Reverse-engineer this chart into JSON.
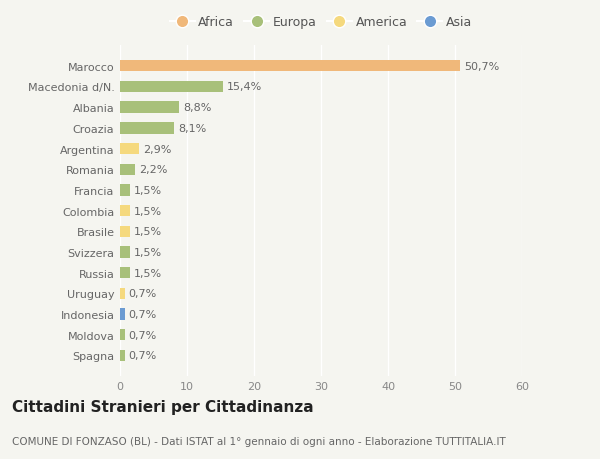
{
  "categories": [
    "Spagna",
    "Moldova",
    "Indonesia",
    "Uruguay",
    "Russia",
    "Svizzera",
    "Brasile",
    "Colombia",
    "Francia",
    "Romania",
    "Argentina",
    "Croazia",
    "Albania",
    "Macedonia d/N.",
    "Marocco"
  ],
  "values": [
    0.7,
    0.7,
    0.7,
    0.7,
    1.5,
    1.5,
    1.5,
    1.5,
    1.5,
    2.2,
    2.9,
    8.1,
    8.8,
    15.4,
    50.7
  ],
  "labels": [
    "0,7%",
    "0,7%",
    "0,7%",
    "0,7%",
    "1,5%",
    "1,5%",
    "1,5%",
    "1,5%",
    "1,5%",
    "2,2%",
    "2,9%",
    "8,1%",
    "8,8%",
    "15,4%",
    "50,7%"
  ],
  "colors": [
    "#a8c07a",
    "#a8c07a",
    "#6b9bd2",
    "#f5d97e",
    "#a8c07a",
    "#a8c07a",
    "#f5d97e",
    "#f5d97e",
    "#a8c07a",
    "#a8c07a",
    "#f5d97e",
    "#a8c07a",
    "#a8c07a",
    "#a8c07a",
    "#f0b87a"
  ],
  "legend_labels": [
    "Africa",
    "Europa",
    "America",
    "Asia"
  ],
  "legend_colors": [
    "#f0b87a",
    "#a8c07a",
    "#f5d97e",
    "#6b9bd2"
  ],
  "title": "Cittadini Stranieri per Cittadinanza",
  "subtitle": "COMUNE DI FONZASO (BL) - Dati ISTAT al 1° gennaio di ogni anno - Elaborazione TUTTITALIA.IT",
  "xlim": [
    0,
    60
  ],
  "xticks": [
    0,
    10,
    20,
    30,
    40,
    50,
    60
  ],
  "background_color": "#f5f5f0",
  "bar_height": 0.55,
  "title_fontsize": 11,
  "subtitle_fontsize": 7.5,
  "tick_fontsize": 8,
  "label_fontsize": 8,
  "legend_fontsize": 9
}
